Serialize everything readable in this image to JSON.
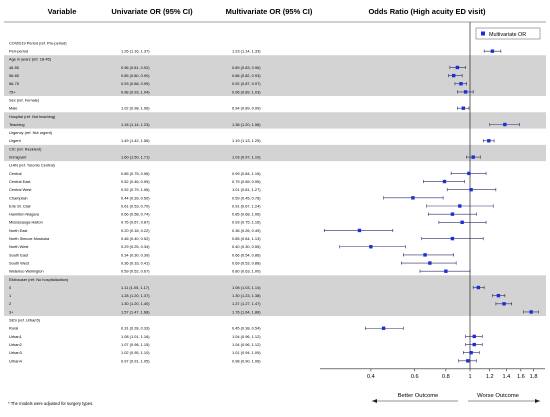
{
  "headers": {
    "variable": "Variable",
    "univariate": "Univariate OR (95% CI)",
    "multivariate": "Multivariate OR (95% CI)",
    "plot": "Odds Ratio (High acuity ED visit)"
  },
  "legend": {
    "label": "Multivariate OR",
    "color": "#1f2fd6"
  },
  "footnote": "* The models were adjusted for surgery types.",
  "arrows": {
    "left": "Better Outcome",
    "right": "Worse Outcome"
  },
  "chart_data": {
    "type": "forest",
    "xscale": "log",
    "xlim": [
      0.25,
      2.0
    ],
    "ticks": [
      0.4,
      0.6,
      0.8,
      1,
      1.2,
      1.4,
      1.6,
      1.8
    ],
    "tick_labels": [
      "0.4",
      "0.6",
      "0.8",
      "1",
      "1.2",
      "1.4",
      "1.6",
      "1.8"
    ],
    "reference_line": 1,
    "marker_color": "#1f2fd6",
    "ci_color": "#2a2a6a",
    "rows": [
      {
        "label": "COVID19 Period (ref. Pre-period)",
        "header": true,
        "shade": false
      },
      {
        "label": "Peri-period",
        "uni": "1.26 (1.16, 1.37)",
        "multi": "1.23 (1.14, 1.33)",
        "or": 1.23,
        "lo": 1.14,
        "hi": 1.33,
        "shade": false
      },
      {
        "label": "Age in years (ref. 18-45)",
        "header": true,
        "shade": true
      },
      {
        "label": "46-55",
        "uni": "0.96 (0.81, 0.92)",
        "multi": "0.89 (0.83, 0.96)",
        "or": 0.89,
        "lo": 0.83,
        "hi": 0.96,
        "shade": true
      },
      {
        "label": "56-65",
        "uni": "0.85 (0.80, 0.90)",
        "multi": "0.86 (0.82, 0.93)",
        "or": 0.86,
        "lo": 0.82,
        "hi": 0.93,
        "shade": true
      },
      {
        "label": "66-75",
        "uni": "0.93 (0.88, 0.99)",
        "multi": "0.92 (0.87, 0.97)",
        "or": 0.92,
        "lo": 0.87,
        "hi": 0.97,
        "shade": true
      },
      {
        "label": "75+",
        "uni": "0.98 (0.93, 1.04)",
        "multi": "0.96 (0.89, 1.03)",
        "or": 0.96,
        "lo": 0.89,
        "hi": 1.03,
        "shade": true
      },
      {
        "label": "Sex (ref. Female)",
        "header": true,
        "shade": false
      },
      {
        "label": "Male",
        "uni": "1.02 (0.98, 1.06)",
        "multi": "0.94 (0.89, 0.99)",
        "or": 0.94,
        "lo": 0.89,
        "hi": 0.99,
        "shade": false
      },
      {
        "label": "Hospital (ref. Not teaching)",
        "header": true,
        "shade": true
      },
      {
        "label": "Teaching",
        "uni": "1.18 (1.14, 1.23)",
        "multi": "1.38 (1.20, 1.58)",
        "or": 1.38,
        "lo": 1.2,
        "hi": 1.58,
        "shade": true
      },
      {
        "label": "Urgency  (ref. Not urgent)",
        "header": true,
        "shade": false
      },
      {
        "label": "Urgent",
        "uni": "1.49 (1.42, 1.56)",
        "multi": "1.19 (1.13, 1.25)",
        "or": 1.19,
        "lo": 1.13,
        "hi": 1.25,
        "shade": false
      },
      {
        "label": "CIC (ref. Resident)",
        "header": true,
        "shade": true
      },
      {
        "label": "Immigrant",
        "uni": "1.60 (1.50, 1.71)",
        "multi": "1.03 (0.97, 1.10)",
        "or": 1.03,
        "lo": 0.97,
        "hi": 1.1,
        "shade": true
      },
      {
        "label": "LHIN (ref. Toronto Central)",
        "header": true,
        "shade": false
      },
      {
        "label": "Central",
        "uni": "0.85 (0.75, 0.96)",
        "multi": "0.99 (0.84, 1.16)",
        "or": 0.99,
        "lo": 0.84,
        "hi": 1.16,
        "shade": false
      },
      {
        "label": "Central East",
        "uni": "0.52 (0.46, 0.59)",
        "multi": "0.79 (0.65, 0.95)",
        "or": 0.79,
        "lo": 0.65,
        "hi": 0.95,
        "shade": false
      },
      {
        "label": "Central West",
        "uni": "0.92 (0.79, 1.06)",
        "multi": "1.01 (0.81, 1.27)",
        "or": 1.01,
        "lo": 0.81,
        "hi": 1.27,
        "shade": false
      },
      {
        "label": "Champlain",
        "uni": "0.44 (0.39, 0.50)",
        "multi": "0.59 (0.45, 0.78)",
        "or": 0.59,
        "lo": 0.45,
        "hi": 0.78,
        "shade": false
      },
      {
        "label": "Erie St. Clair",
        "uni": "0.61 (0.53, 0.70)",
        "multi": "0.91 (0.67, 1.24)",
        "or": 0.91,
        "lo": 0.67,
        "hi": 1.24,
        "shade": false
      },
      {
        "label": "Hamilton Niagara",
        "uni": "0.66 (0.58, 0.74)",
        "multi": "0.85 (0.68, 1.06)",
        "or": 0.85,
        "lo": 0.68,
        "hi": 1.06,
        "shade": false
      },
      {
        "label": "Mississauga Halton",
        "uni": "0.76 (0.67, 0.87)",
        "multi": "0.93 (0.75, 1.16)",
        "or": 0.93,
        "lo": 0.75,
        "hi": 1.16,
        "shade": false
      },
      {
        "label": "North East",
        "uni": "0.20 (0.18, 0.22)",
        "multi": "0.36 (0.26, 0.49)",
        "or": 0.36,
        "lo": 0.26,
        "hi": 0.49,
        "shade": false
      },
      {
        "label": "North Simcoe Muskoka",
        "uni": "0.46 (0.40, 0.52)",
        "multi": "0.85 (0.64, 1.13)",
        "or": 0.85,
        "lo": 0.64,
        "hi": 1.13,
        "shade": false
      },
      {
        "label": "North West",
        "uni": "0.29 (0.25, 0.34)",
        "multi": "0.40 (0.30, 0.55)",
        "or": 0.4,
        "lo": 0.3,
        "hi": 0.55,
        "shade": false
      },
      {
        "label": "South East",
        "uni": "0.34 (0.30, 0.39)",
        "multi": "0.66 (0.54, 0.86)",
        "or": 0.66,
        "lo": 0.54,
        "hi": 0.86,
        "shade": false
      },
      {
        "label": "South West",
        "uni": "0.36 (0.33, 0.41)",
        "multi": "0.69 (0.53, 0.88)",
        "or": 0.69,
        "lo": 0.53,
        "hi": 0.88,
        "shade": false
      },
      {
        "label": "Waterloo Wellington",
        "uni": "0.59 (0.52, 0.67)",
        "multi": "0.80 (0.63, 1.00)",
        "or": 0.8,
        "lo": 0.63,
        "hi": 1.0,
        "shade": false
      },
      {
        "label": "Elixhauser (ref. No hospitalization)",
        "header": true,
        "shade": true
      },
      {
        "label": "0",
        "uni": "1.11 (1.05, 1.17)",
        "multi": "1.08 (1.03, 1.14)",
        "or": 1.08,
        "lo": 1.03,
        "hi": 1.14,
        "shade": true
      },
      {
        "label": "1",
        "uni": "1.28 (1.20, 1.37)",
        "multi": "1.30 (1.23, 1.38)",
        "or": 1.3,
        "lo": 1.23,
        "hi": 1.38,
        "shade": true
      },
      {
        "label": "2",
        "uni": "1.30 (1.20, 1.40)",
        "multi": "1.37 (1.27, 1.47)",
        "or": 1.37,
        "lo": 1.27,
        "hi": 1.47,
        "shade": true
      },
      {
        "label": "3+",
        "uni": "1.57 (1.47, 1.68)",
        "multi": "1.76 (1.64, 1.88)",
        "or": 1.76,
        "lo": 1.64,
        "hi": 1.88,
        "shade": true
      },
      {
        "label": "SES (ref. Urban5)",
        "header": true,
        "shade": false
      },
      {
        "label": "Rural",
        "uni": "0.31 (0.28, 0.33)",
        "multi": "0.45 (0.38, 0.54)",
        "or": 0.45,
        "lo": 0.38,
        "hi": 0.54,
        "shade": false
      },
      {
        "label": "Urban1",
        "uni": "1.08 (1.01, 1.16)",
        "multi": "1.04 (0.96, 1.12)",
        "or": 1.04,
        "lo": 0.96,
        "hi": 1.12,
        "shade": false
      },
      {
        "label": "Urban2",
        "uni": "1.07 (0.98, 1.15)",
        "multi": "1.04 (0.96, 1.12)",
        "or": 1.04,
        "lo": 0.96,
        "hi": 1.12,
        "shade": false
      },
      {
        "label": "Urban3",
        "uni": "1.02 (0.95, 1.10)",
        "multi": "1.01 (0.94, 1.09)",
        "or": 1.01,
        "lo": 0.94,
        "hi": 1.09,
        "shade": false
      },
      {
        "label": "Urban4",
        "uni": "0.97 (0.91, 1.05)",
        "multi": "0.98 (0.90, 1.06)",
        "or": 0.98,
        "lo": 0.9,
        "hi": 1.06,
        "shade": false
      }
    ]
  }
}
